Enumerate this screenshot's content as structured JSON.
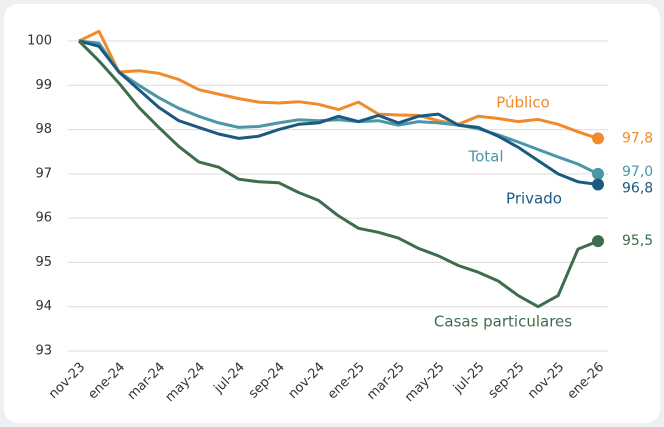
{
  "chart_data": {
    "type": "line",
    "categories": [
      "nov-23",
      null,
      "ene-24",
      null,
      "mar-24",
      null,
      "may-24",
      null,
      "jul-24",
      null,
      "sep-24",
      null,
      "nov-24",
      null,
      "ene-25",
      null,
      "mar-25",
      null,
      "may-25",
      null,
      "jul-25",
      null,
      "sep-25",
      null,
      "nov-25",
      null,
      "ene-26"
    ],
    "series": [
      {
        "name": "Público",
        "color": "#f08a2b",
        "end_label": "97,8",
        "values": [
          100,
          100.22,
          99.3,
          99.33,
          99.27,
          99.13,
          98.9,
          98.8,
          98.7,
          98.62,
          98.6,
          98.63,
          98.57,
          98.45,
          98.62,
          98.35,
          98.33,
          98.32,
          98.2,
          98.12,
          98.3,
          98.25,
          98.18,
          98.23,
          98.12,
          97.95,
          97.8
        ]
      },
      {
        "name": "Total",
        "color": "#4b97a8",
        "end_label": "97,0",
        "values": [
          100,
          99.95,
          99.3,
          99.0,
          98.72,
          98.48,
          98.3,
          98.15,
          98.05,
          98.07,
          98.15,
          98.22,
          98.2,
          98.22,
          98.18,
          98.2,
          98.1,
          98.18,
          98.15,
          98.1,
          98.02,
          97.88,
          97.72,
          97.55,
          97.38,
          97.22,
          97.0
        ]
      },
      {
        "name": "Privado",
        "color": "#1b5a80",
        "end_label": "96,8",
        "values": [
          100,
          99.88,
          99.3,
          98.9,
          98.5,
          98.2,
          98.05,
          97.9,
          97.8,
          97.85,
          98.0,
          98.12,
          98.15,
          98.3,
          98.18,
          98.32,
          98.15,
          98.3,
          98.35,
          98.1,
          98.05,
          97.85,
          97.6,
          97.3,
          97.0,
          96.82,
          96.76
        ]
      },
      {
        "name": "Casas particulares",
        "color": "#3e6d4d",
        "end_label": "95,5",
        "values": [
          100,
          99.55,
          99.05,
          98.5,
          98.05,
          97.62,
          97.27,
          97.15,
          96.88,
          96.82,
          96.8,
          96.58,
          96.4,
          96.05,
          95.77,
          95.68,
          95.55,
          95.32,
          95.15,
          94.93,
          94.78,
          94.58,
          94.25,
          94.0,
          94.25,
          95.3,
          95.48
        ]
      }
    ],
    "ylim": [
      93,
      100
    ],
    "yticks": [
      93,
      94,
      95,
      96,
      97,
      98,
      99,
      100
    ],
    "grid": true
  }
}
